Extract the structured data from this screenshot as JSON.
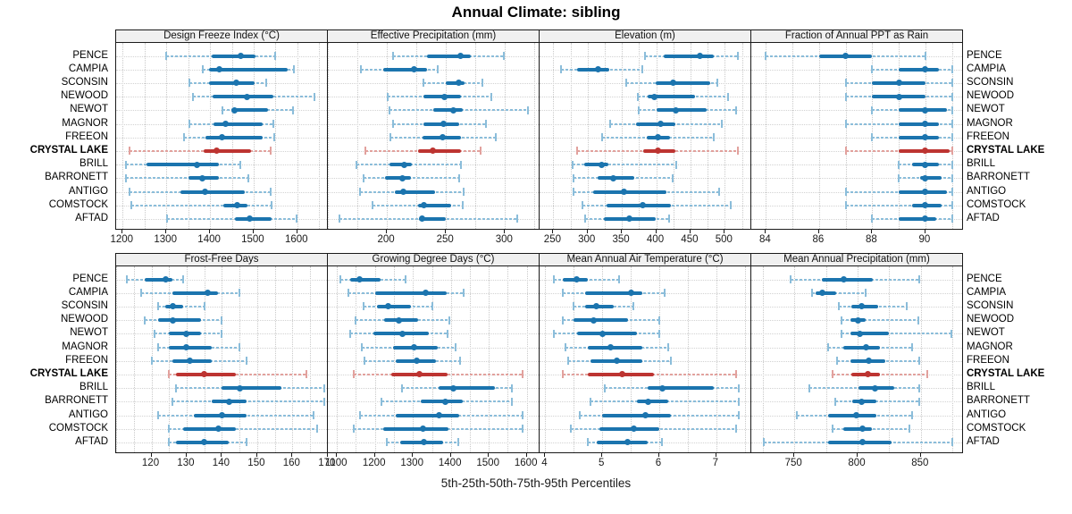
{
  "title": "Annual Climate: sibling",
  "caption": "5th-25th-50th-75th-95th Percentiles",
  "colors": {
    "normal_dark": "#1b74ae",
    "normal_light": "#8bbdda",
    "highlight_dark": "#bd3431",
    "highlight_light": "#e2a19d",
    "grid": "#cccccc",
    "panel_header_bg": "#f0f0f0",
    "panel_border": "#1a1a1a"
  },
  "chart_data": {
    "type": "scatter",
    "subtype": "five-number-summary percentile interval plot (whisker 5th-95th, bar 25th-75th, dot median)",
    "title": "Annual Climate: sibling",
    "caption": "5th-25th-50th-75th-95th Percentiles",
    "layout": "trellis 2 rows x 4 columns; site names labelled on both left and right of each panel row",
    "grid": "dotted",
    "legend_position": "none",
    "categories": [
      "PENCE",
      "CAMPIA",
      "SCONSIN",
      "NEWOOD",
      "NEWOT",
      "MAGNOR",
      "FREEON",
      "CRYSTAL LAKE",
      "BRILL",
      "BARRONETT",
      "ANTIGO",
      "COMSTOCK",
      "AFTAD"
    ],
    "highlight_category": "CRYSTAL LAKE",
    "percentiles": [
      5,
      25,
      50,
      75,
      95
    ],
    "panels": [
      {
        "title": "Design Freeze Index (°C)",
        "xlim": [
          1185,
          1672
        ],
        "xticks": [
          1200,
          1300,
          1400,
          1500,
          1600
        ],
        "grid_step": 50,
        "values": [
          [
            1299,
            1403,
            1470,
            1505,
            1550
          ],
          [
            1383,
            1397,
            1421,
            1578,
            1592
          ],
          [
            1352,
            1398,
            1461,
            1503,
            1528
          ],
          [
            1360,
            1405,
            1485,
            1545,
            1640
          ],
          [
            1428,
            1448,
            1456,
            1533,
            1590
          ],
          [
            1352,
            1408,
            1435,
            1520,
            1546
          ],
          [
            1340,
            1390,
            1428,
            1520,
            1547
          ],
          [
            1215,
            1385,
            1415,
            1495,
            1538
          ],
          [
            1207,
            1255,
            1370,
            1420,
            1470
          ],
          [
            1207,
            1350,
            1383,
            1420,
            1487
          ],
          [
            1216,
            1333,
            1388,
            1480,
            1538
          ],
          [
            1220,
            1430,
            1462,
            1485,
            1540
          ],
          [
            1302,
            1457,
            1490,
            1542,
            1598
          ]
        ]
      },
      {
        "title": "Effective Precipitation (mm)",
        "xlim": [
          150,
          330
        ],
        "xticks": [
          200,
          250,
          300
        ],
        "grid_step": 25,
        "values": [
          [
            205,
            234,
            262,
            271,
            299
          ],
          [
            178,
            197,
            223,
            234,
            243
          ],
          [
            231,
            250,
            261,
            266,
            281
          ],
          [
            201,
            231,
            249,
            263,
            288
          ],
          [
            202,
            239,
            256,
            264,
            319
          ],
          [
            205,
            231,
            248,
            261,
            284
          ],
          [
            203,
            230,
            247,
            263,
            292
          ],
          [
            182,
            226,
            239,
            263,
            279
          ],
          [
            174,
            202,
            215,
            221,
            263
          ],
          [
            180,
            198,
            213,
            220,
            261
          ],
          [
            177,
            207,
            214,
            241,
            265
          ],
          [
            188,
            226,
            231,
            254,
            264
          ],
          [
            160,
            227,
            230,
            250,
            310
          ]
        ]
      },
      {
        "title": "Elevation (m)",
        "xlim": [
          230,
          540
        ],
        "xticks": [
          250,
          300,
          350,
          400,
          450,
          500
        ],
        "grid_step": 25,
        "values": [
          [
            383,
            411,
            464,
            484,
            519
          ],
          [
            261,
            285,
            315,
            332,
            380
          ],
          [
            356,
            399,
            425,
            479,
            489
          ],
          [
            373,
            387,
            397,
            457,
            505
          ],
          [
            374,
            400,
            428,
            473,
            516
          ],
          [
            333,
            370,
            406,
            428,
            495
          ],
          [
            321,
            386,
            403,
            420,
            484
          ],
          [
            285,
            381,
            402,
            428,
            519
          ],
          [
            278,
            295,
            320,
            331,
            429
          ],
          [
            280,
            315,
            338,
            368,
            424
          ],
          [
            280,
            308,
            353,
            415,
            492
          ],
          [
            292,
            328,
            380,
            422,
            509
          ],
          [
            296,
            324,
            361,
            400,
            419
          ]
        ]
      },
      {
        "title": "Fraction of Annual PPT as Rain",
        "xlim": [
          83.45,
          91.45
        ],
        "xticks": [
          84,
          86,
          88,
          90
        ],
        "grid_step": 1,
        "values": [
          [
            84,
            86,
            87,
            88,
            90
          ],
          [
            88,
            89,
            90,
            90.5,
            91
          ],
          [
            87,
            88,
            89,
            90,
            91
          ],
          [
            87,
            88,
            89,
            90,
            91
          ],
          [
            88,
            89,
            90,
            90.8,
            91
          ],
          [
            87,
            89,
            90,
            90.5,
            91
          ],
          [
            88,
            89,
            90,
            90.5,
            91
          ],
          [
            87,
            89,
            90,
            90.9,
            91
          ],
          [
            89,
            89.5,
            90,
            90.5,
            91
          ],
          [
            89,
            89.8,
            90,
            90.6,
            91
          ],
          [
            87,
            89,
            90,
            90.8,
            91
          ],
          [
            87,
            89.5,
            90,
            90.6,
            91
          ],
          [
            88,
            89,
            90,
            90.4,
            91
          ]
        ]
      },
      {
        "title": "Frost-Free Days",
        "xlim": [
          110,
          170.3
        ],
        "xticks": [
          120,
          130,
          140,
          150,
          160,
          170
        ],
        "grid_step": 5,
        "values": [
          [
            113,
            118,
            124,
            126,
            129
          ],
          [
            117,
            126,
            136,
            139,
            145
          ],
          [
            122,
            124,
            126,
            129,
            135
          ],
          [
            118,
            122,
            126,
            134,
            140
          ],
          [
            121,
            125,
            130,
            134,
            140
          ],
          [
            122,
            125,
            130,
            137,
            145
          ],
          [
            120,
            126,
            131,
            137,
            147
          ],
          [
            125,
            127,
            135,
            144,
            164
          ],
          [
            127,
            140,
            145,
            157,
            169
          ],
          [
            126,
            137,
            142,
            147,
            169
          ],
          [
            122,
            132,
            140,
            147,
            166
          ],
          [
            125,
            129,
            139,
            144,
            167
          ],
          [
            125,
            127,
            135,
            142,
            147
          ]
        ]
      },
      {
        "title": "Growing Degree Days (°C)",
        "xlim": [
          1076,
          1636
        ],
        "xticks": [
          1100,
          1200,
          1300,
          1400,
          1500,
          1600
        ],
        "grid_step": 50,
        "values": [
          [
            1110,
            1135,
            1160,
            1215,
            1280
          ],
          [
            1130,
            1200,
            1333,
            1390,
            1433
          ],
          [
            1170,
            1205,
            1235,
            1295,
            1350
          ],
          [
            1150,
            1224,
            1263,
            1313,
            1396
          ],
          [
            1135,
            1195,
            1272,
            1343,
            1392
          ],
          [
            1165,
            1247,
            1302,
            1365,
            1412
          ],
          [
            1172,
            1255,
            1310,
            1360,
            1423
          ],
          [
            1145,
            1243,
            1316,
            1390,
            1590
          ],
          [
            1270,
            1367,
            1406,
            1516,
            1561
          ],
          [
            1216,
            1320,
            1386,
            1431,
            1561
          ],
          [
            1160,
            1255,
            1368,
            1423,
            1590
          ],
          [
            1145,
            1222,
            1326,
            1394,
            1588
          ],
          [
            1230,
            1266,
            1329,
            1380,
            1420
          ]
        ]
      },
      {
        "title": "Mean Annual Air Temperature (°C)",
        "xlim": [
          3.9,
          7.63
        ],
        "xticks": [
          4,
          5,
          6,
          7
        ],
        "grid_step": 0.5,
        "values": [
          [
            4.15,
            4.3,
            4.55,
            4.75,
            5.3
          ],
          [
            4.3,
            4.7,
            5.5,
            5.7,
            6.1
          ],
          [
            4.5,
            4.7,
            4.9,
            5.2,
            5.55
          ],
          [
            4.3,
            4.5,
            4.85,
            5.45,
            6.0
          ],
          [
            4.15,
            4.55,
            5.0,
            5.6,
            6.0
          ],
          [
            4.35,
            4.75,
            5.15,
            5.7,
            6.15
          ],
          [
            4.4,
            4.8,
            5.25,
            5.7,
            6.2
          ],
          [
            4.3,
            4.75,
            5.35,
            5.9,
            7.35
          ],
          [
            5.05,
            5.8,
            6.05,
            6.95,
            7.4
          ],
          [
            4.8,
            5.6,
            5.8,
            6.15,
            7.4
          ],
          [
            4.6,
            5.0,
            5.75,
            6.2,
            7.4
          ],
          [
            4.45,
            4.95,
            5.55,
            6.0,
            7.35
          ],
          [
            4.75,
            4.9,
            5.45,
            5.8,
            6.05
          ]
        ]
      },
      {
        "title": "Mean Annual Precipitation (mm)",
        "xlim": [
          716,
          884
        ],
        "xticks": [
          750,
          800,
          850
        ],
        "grid_step": 25,
        "values": [
          [
            747,
            772,
            789,
            812,
            849
          ],
          [
            764,
            767,
            772,
            783,
            806
          ],
          [
            785,
            795,
            803,
            816,
            839
          ],
          [
            787,
            794,
            800,
            806,
            848
          ],
          [
            787,
            794,
            802,
            825,
            874
          ],
          [
            777,
            789,
            807,
            818,
            843
          ],
          [
            784,
            794,
            809,
            822,
            849
          ],
          [
            780,
            795,
            808,
            818,
            855
          ],
          [
            762,
            801,
            814,
            829,
            849
          ],
          [
            782,
            796,
            803,
            815,
            849
          ],
          [
            752,
            777,
            799,
            815,
            843
          ],
          [
            780,
            789,
            804,
            811,
            841
          ],
          [
            726,
            777,
            804,
            827,
            875
          ]
        ]
      }
    ]
  }
}
